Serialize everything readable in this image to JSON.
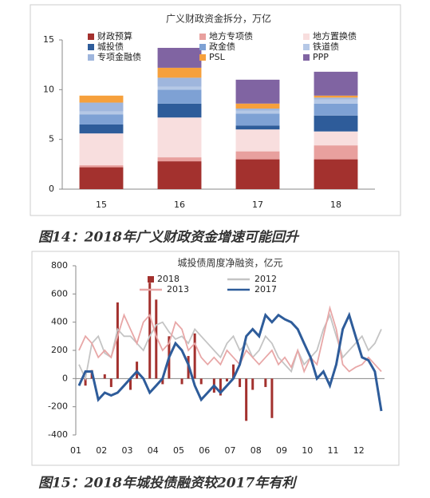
{
  "chart_data": [
    {
      "type": "bar",
      "stacked": true,
      "title": "广义财政资金拆分，万亿",
      "caption": "图14：2018年广义财政资金增速可能回升",
      "categories": [
        "15",
        "16",
        "17",
        "18"
      ],
      "ylim": [
        0,
        15
      ],
      "yticks": [
        0,
        5,
        10,
        15
      ],
      "series": [
        {
          "name": "财政预算",
          "color": "#a3312e",
          "values": [
            2.2,
            2.8,
            3.0,
            3.0
          ]
        },
        {
          "name": "地方专项债",
          "color": "#e8a09e",
          "values": [
            0.2,
            0.4,
            0.8,
            1.4
          ]
        },
        {
          "name": "地方置换债",
          "color": "#f8dede",
          "values": [
            3.2,
            4.0,
            2.2,
            1.4
          ]
        },
        {
          "name": "城投债",
          "color": "#2e5c9a",
          "values": [
            0.9,
            1.4,
            0.4,
            1.6
          ]
        },
        {
          "name": "政金债",
          "color": "#7ea1d4",
          "values": [
            1.0,
            1.4,
            1.2,
            1.2
          ]
        },
        {
          "name": "铁道债",
          "color": "#b5c8e6",
          "values": [
            0.3,
            0.3,
            0.3,
            0.4
          ]
        },
        {
          "name": "专项金融债",
          "color": "#9fb6dd",
          "values": [
            0.9,
            0.9,
            0.2,
            0.2
          ]
        },
        {
          "name": "PSL",
          "color": "#f6a03c",
          "values": [
            0.7,
            1.0,
            0.5,
            0.2
          ]
        },
        {
          "name": "PPP",
          "color": "#8064a2",
          "values": [
            0,
            2.0,
            2.4,
            2.4
          ]
        }
      ]
    },
    {
      "type": "line",
      "title": "城投债周度净融资，亿元",
      "caption": "图15：2018年城投债融资较2017年有利",
      "categories": [
        "01",
        null,
        null,
        null,
        "02",
        null,
        null,
        null,
        "03",
        null,
        null,
        null,
        "04",
        null,
        null,
        null,
        "05",
        null,
        null,
        null,
        "06",
        null,
        null,
        null,
        "07",
        null,
        null,
        null,
        "08",
        null,
        null,
        null,
        "09",
        null,
        null,
        null,
        "10",
        null,
        null,
        null,
        "11",
        null,
        null,
        null,
        "12",
        null,
        null,
        null
      ],
      "ylim": [
        -400,
        800
      ],
      "yticks": [
        -400,
        -200,
        0,
        200,
        400,
        600,
        800
      ],
      "series": [
        {
          "name": "2018",
          "type": "bar",
          "color": "#a3312e",
          "values": [
            0,
            -50,
            60,
            0,
            30,
            -60,
            540,
            0,
            -80,
            120,
            0,
            680,
            560,
            -40,
            300,
            0,
            -40,
            160,
            320,
            -40,
            0,
            -100,
            -120,
            -20,
            100,
            -60,
            -300,
            -80,
            0,
            -60,
            -280,
            0,
            null,
            null,
            null,
            null,
            null,
            null,
            null,
            null,
            null,
            null,
            null,
            null,
            null,
            null,
            null,
            null
          ]
        },
        {
          "name": "2012",
          "type": "line",
          "color": "#c4c4c4",
          "values": [
            100,
            0,
            250,
            300,
            180,
            150,
            350,
            300,
            300,
            250,
            200,
            300,
            380,
            400,
            330,
            280,
            300,
            250,
            350,
            300,
            250,
            200,
            150,
            250,
            300,
            200,
            250,
            150,
            200,
            300,
            250,
            150,
            100,
            50,
            200,
            100,
            150,
            200,
            350,
            450,
            300,
            150,
            200,
            250,
            300,
            200,
            250,
            350
          ]
        },
        {
          "name": "2013",
          "type": "line",
          "color": "#e8a7a7",
          "values": [
            200,
            300,
            250,
            150,
            200,
            150,
            300,
            450,
            350,
            250,
            400,
            450,
            300,
            200,
            250,
            400,
            350,
            200,
            250,
            150,
            100,
            150,
            100,
            200,
            150,
            100,
            200,
            150,
            100,
            150,
            200,
            100,
            150,
            80,
            200,
            50,
            150,
            100,
            300,
            500,
            350,
            100,
            50,
            80,
            100,
            150,
            100,
            50
          ]
        },
        {
          "name": "2017",
          "type": "line",
          "color": "#2e5c9a",
          "values": [
            -50,
            50,
            50,
            -150,
            -100,
            -120,
            -100,
            -50,
            0,
            50,
            0,
            -100,
            -50,
            0,
            150,
            250,
            200,
            100,
            -50,
            -150,
            -100,
            -50,
            -100,
            -50,
            0,
            100,
            300,
            350,
            300,
            450,
            400,
            450,
            420,
            400,
            350,
            250,
            150,
            0,
            50,
            -50,
            100,
            350,
            450,
            300,
            150,
            130,
            50,
            -230
          ]
        }
      ]
    }
  ]
}
